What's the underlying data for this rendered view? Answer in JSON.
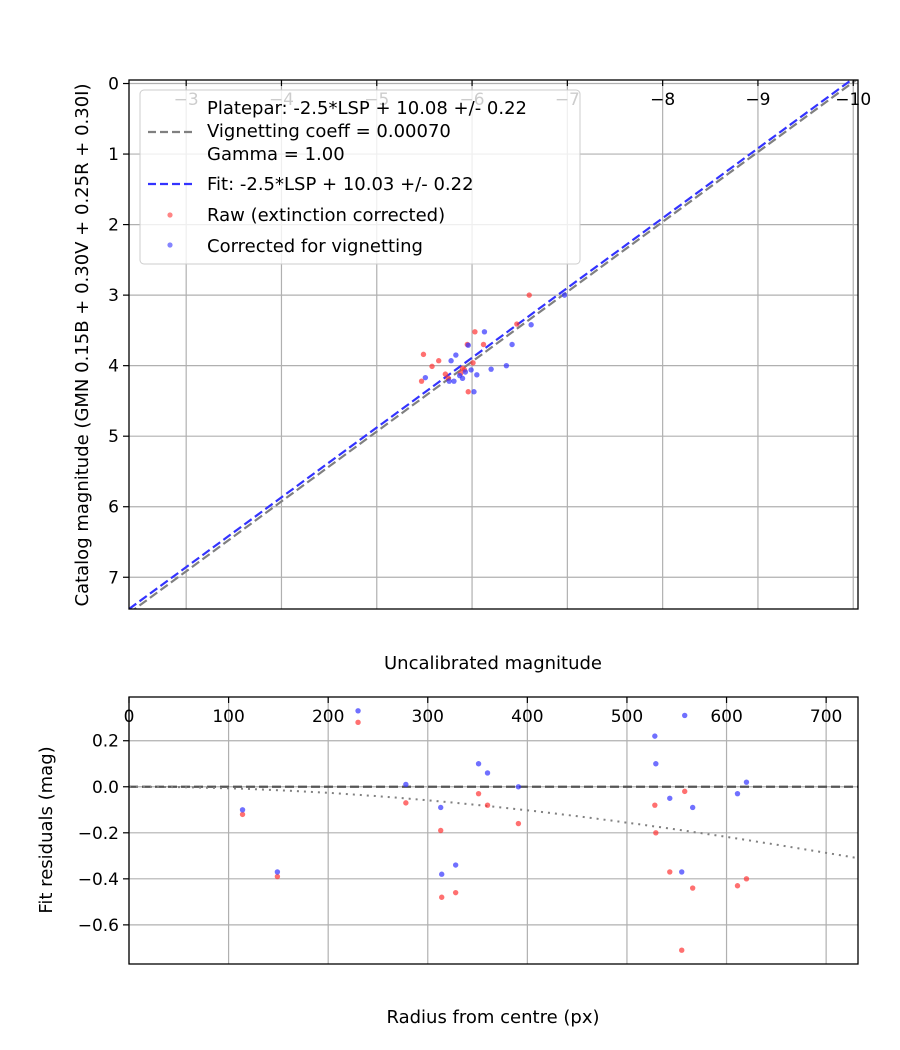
{
  "chart_data": [
    {
      "type": "scatter",
      "xlabel": "Uncalibrated magnitude",
      "ylabel": "Catalog magnitude (GMN 0.15B + 0.30V + 0.25R + 0.30I)",
      "xlim": [
        -2.4,
        -10.05
      ],
      "ylim": [
        7.45,
        -0.05
      ],
      "xticks": [
        -3,
        -4,
        -5,
        -6,
        -7,
        -8,
        -9,
        -10
      ],
      "xtick_labels": [
        "−3",
        "−4",
        "−5",
        "−6",
        "−7",
        "−8",
        "−9",
        "−10"
      ],
      "yticks": [
        0,
        1,
        2,
        3,
        4,
        5,
        6,
        7
      ],
      "ytick_labels": [
        "0",
        "1",
        "2",
        "3",
        "4",
        "5",
        "6",
        "7"
      ],
      "grid": true,
      "legend_position": "top-left",
      "legend": [
        {
          "label": "Platepar: -2.5*LSP + 10.08 +/- 0.22",
          "style": "none"
        },
        {
          "label": "Vignetting coeff = 0.00070",
          "style": "dashed-gray"
        },
        {
          "label": "Gamma = 1.00",
          "style": "none"
        },
        {
          "label": "Fit: -2.5*LSP + 10.03 +/- 0.22",
          "style": "dashed-blue"
        },
        {
          "label": "Raw (extinction corrected)",
          "style": "red-marker"
        },
        {
          "label": "Corrected for vignetting",
          "style": "blue-marker"
        }
      ],
      "lines": [
        {
          "name": "Platepar",
          "x": [
            -2.4,
            -10.05
          ],
          "y": [
            7.51,
            -0.07
          ],
          "color": "#808080",
          "dash": "dashed"
        },
        {
          "name": "Fit",
          "x": [
            -2.4,
            -10.05
          ],
          "y": [
            7.45,
            -0.12
          ],
          "color": "#3333ff",
          "dash": "dashed"
        }
      ],
      "series": [
        {
          "name": "Raw (extinction corrected)",
          "color": "#ff3333",
          "x": [
            -5.47,
            -5.49,
            -5.58,
            -5.65,
            -5.72,
            -5.75,
            -5.88,
            -5.9,
            -5.92,
            -5.95,
            -5.96,
            -6.01,
            -6.03,
            -6.12,
            -6.47,
            -6.6
          ],
          "y": [
            4.22,
            3.84,
            4.01,
            3.93,
            4.12,
            4.18,
            4.11,
            4.04,
            4.06,
            3.7,
            4.37,
            3.96,
            3.52,
            3.7,
            3.41,
            3.0
          ]
        },
        {
          "name": "Corrected for vignetting",
          "color": "#3333ff",
          "x": [
            -5.51,
            -5.76,
            -5.78,
            -5.81,
            -5.83,
            -5.87,
            -5.9,
            -5.93,
            -5.96,
            -5.99,
            -6.02,
            -6.05,
            -6.13,
            -6.2,
            -6.36,
            -6.42,
            -6.62,
            -6.97
          ],
          "y": [
            4.17,
            4.22,
            3.93,
            4.22,
            3.85,
            4.14,
            4.18,
            4.09,
            3.71,
            4.06,
            4.37,
            4.13,
            3.52,
            4.05,
            4.0,
            3.7,
            3.42,
            3.0
          ]
        }
      ]
    },
    {
      "type": "scatter",
      "xlabel": "Radius from centre (px)",
      "ylabel": "Fit residuals (mag)",
      "xlim": [
        0,
        732
      ],
      "ylim": [
        -0.77,
        0.39
      ],
      "xticks": [
        0,
        100,
        200,
        300,
        400,
        500,
        600,
        700
      ],
      "xtick_labels": [
        "0",
        "100",
        "200",
        "300",
        "400",
        "500",
        "600",
        "700"
      ],
      "yticks": [
        0.2,
        0.0,
        -0.2,
        -0.4,
        -0.6
      ],
      "ytick_labels": [
        "0.2",
        "0.0",
        "−0.2",
        "−0.4",
        "−0.6"
      ],
      "grid": true,
      "lines": [
        {
          "name": "zero",
          "color": "#555555",
          "dash": "dashed",
          "x": [
            0,
            732
          ],
          "y": [
            0,
            0
          ]
        },
        {
          "name": "vignetting",
          "color": "#808080",
          "dash": "dotted",
          "coeff": 0.0007
        }
      ],
      "series": [
        {
          "name": "Raw (extinction corrected)",
          "color": "#ff3333",
          "x": [
            114,
            149,
            230,
            278,
            313,
            314,
            328,
            351,
            360,
            391,
            528,
            529,
            543,
            555,
            558,
            566,
            611,
            620
          ],
          "y": [
            -0.12,
            -0.39,
            0.28,
            -0.07,
            -0.19,
            -0.48,
            -0.46,
            -0.03,
            -0.08,
            -0.16,
            -0.08,
            -0.2,
            -0.37,
            -0.71,
            -0.02,
            -0.44,
            -0.43,
            -0.4
          ]
        },
        {
          "name": "Corrected for vignetting",
          "color": "#3333ff",
          "x": [
            114,
            149,
            230,
            278,
            313,
            314,
            328,
            351,
            360,
            391,
            528,
            529,
            543,
            555,
            558,
            566,
            611,
            620
          ],
          "y": [
            -0.1,
            -0.37,
            0.33,
            0.01,
            -0.09,
            -0.38,
            -0.34,
            0.1,
            0.06,
            0.0,
            0.22,
            0.1,
            -0.05,
            -0.37,
            0.31,
            -0.09,
            -0.03,
            0.02
          ]
        }
      ]
    }
  ]
}
